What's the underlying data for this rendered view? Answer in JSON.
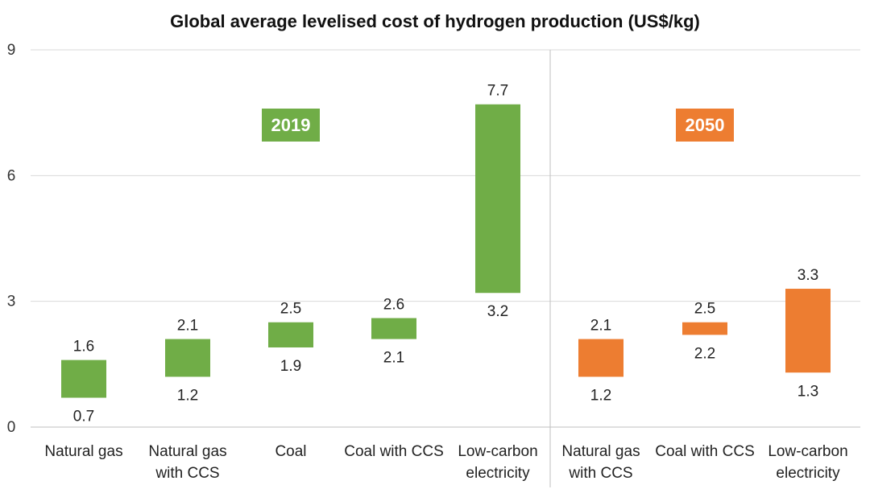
{
  "chart_data": {
    "type": "floating-bar",
    "title": "Global average levelised cost of hydrogen production (US$/kg)",
    "ylabel": "",
    "xlabel": "",
    "ylim": [
      0,
      9
    ],
    "yticks": [
      0,
      3,
      6,
      9
    ],
    "grid": true,
    "groups": [
      {
        "label": "2019",
        "color": "#70ad47",
        "categories": [
          {
            "name": [
              "Natural gas"
            ],
            "low": 0.7,
            "high": 1.6
          },
          {
            "name": [
              "Natural gas",
              "with CCS"
            ],
            "low": 1.2,
            "high": 2.1
          },
          {
            "name": [
              "Coal"
            ],
            "low": 1.9,
            "high": 2.5
          },
          {
            "name": [
              "Coal with CCS"
            ],
            "low": 2.1,
            "high": 2.6
          },
          {
            "name": [
              "Low-carbon",
              "electricity"
            ],
            "low": 3.2,
            "high": 7.7
          }
        ]
      },
      {
        "label": "2050",
        "color": "#ed7d31",
        "categories": [
          {
            "name": [
              "Natural gas",
              "with CCS"
            ],
            "low": 1.2,
            "high": 2.1
          },
          {
            "name": [
              "Coal with CCS"
            ],
            "low": 2.2,
            "high": 2.5
          },
          {
            "name": [
              "Low-carbon",
              "electricity"
            ],
            "low": 1.3,
            "high": 3.3
          }
        ]
      }
    ]
  }
}
